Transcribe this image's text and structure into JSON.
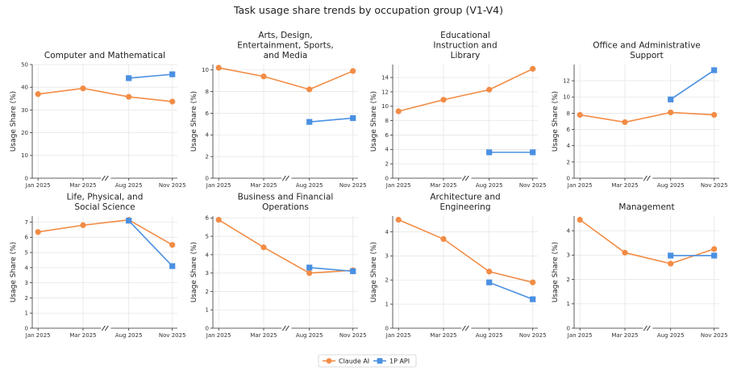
{
  "figure": {
    "title": "Task usage share trends by occupation group (V1-V4)",
    "colors": {
      "claude": "#F28C45",
      "api": "#4A90E2"
    },
    "legend": {
      "items": [
        "Claude AI",
        "1P API"
      ],
      "placement": "bottom-center"
    }
  },
  "chart_data": [
    {
      "type": "line",
      "title": "Computer and Mathematical",
      "ylabel": "Usage Share (%)",
      "x": [
        "Jan 2025",
        "Mar 2025",
        "Aug 2025",
        "Nov 2025"
      ],
      "axis_break": "between Mar 2025 and Aug 2025",
      "ylim": [
        0,
        50
      ],
      "yticks": [
        0,
        10,
        20,
        30,
        40,
        50
      ],
      "grid": true,
      "series": [
        {
          "name": "Claude AI",
          "values": [
            37.0,
            39.5,
            35.8,
            33.7
          ]
        },
        {
          "name": "1P API",
          "values": [
            null,
            null,
            44.0,
            45.7
          ]
        }
      ]
    },
    {
      "type": "line",
      "title": "Arts, Design, Entertainment, Sports, and Media",
      "ylabel": "Usage Share (%)",
      "x": [
        "Jan 2025",
        "Mar 2025",
        "Aug 2025",
        "Nov 2025"
      ],
      "axis_break": "between Mar 2025 and Aug 2025",
      "ylim": [
        0,
        10.5
      ],
      "yticks": [
        0,
        2,
        4,
        6,
        8,
        10
      ],
      "grid": true,
      "series": [
        {
          "name": "Claude AI",
          "values": [
            10.2,
            9.4,
            8.2,
            9.9
          ]
        },
        {
          "name": "1P API",
          "values": [
            null,
            null,
            5.2,
            5.55
          ]
        }
      ]
    },
    {
      "type": "line",
      "title": "Educational Instruction and Library",
      "ylabel": "Usage Share (%)",
      "x": [
        "Jan 2025",
        "Mar 2025",
        "Aug 2025",
        "Nov 2025"
      ],
      "axis_break": "between Mar 2025 and Aug 2025",
      "ylim": [
        0,
        15.8
      ],
      "yticks": [
        0,
        2,
        4,
        6,
        8,
        10,
        12,
        14
      ],
      "grid": true,
      "series": [
        {
          "name": "Claude AI",
          "values": [
            9.3,
            10.9,
            12.3,
            15.2
          ]
        },
        {
          "name": "1P API",
          "values": [
            null,
            null,
            3.6,
            3.6
          ]
        }
      ]
    },
    {
      "type": "line",
      "title": "Office and Administrative Support",
      "ylabel": "Usage Share (%)",
      "x": [
        "Jan 2025",
        "Mar 2025",
        "Aug 2025",
        "Nov 2025"
      ],
      "axis_break": "between Mar 2025 and Aug 2025",
      "ylim": [
        0,
        14
      ],
      "yticks": [
        0,
        2,
        4,
        6,
        8,
        10,
        12
      ],
      "grid": true,
      "series": [
        {
          "name": "Claude AI",
          "values": [
            7.8,
            6.9,
            8.1,
            7.8
          ]
        },
        {
          "name": "1P API",
          "values": [
            null,
            null,
            9.7,
            13.3
          ]
        }
      ]
    },
    {
      "type": "line",
      "title": "Life, Physical, and Social Science",
      "ylabel": "Usage Share (%)",
      "x": [
        "Jan 2025",
        "Mar 2025",
        "Aug 2025",
        "Nov 2025"
      ],
      "axis_break": "between Mar 2025 and Aug 2025",
      "ylim": [
        0,
        7.4
      ],
      "yticks": [
        0,
        1,
        2,
        3,
        4,
        5,
        6,
        7
      ],
      "grid": true,
      "series": [
        {
          "name": "Claude AI",
          "values": [
            6.35,
            6.8,
            7.15,
            5.5
          ]
        },
        {
          "name": "1P API",
          "values": [
            null,
            null,
            7.1,
            4.1
          ]
        }
      ]
    },
    {
      "type": "line",
      "title": "Business and Financial Operations",
      "ylabel": "Usage Share (%)",
      "x": [
        "Jan 2025",
        "Mar 2025",
        "Aug 2025",
        "Nov 2025"
      ],
      "axis_break": "between Mar 2025 and Aug 2025",
      "ylim": [
        0,
        6.1
      ],
      "yticks": [
        0,
        1,
        2,
        3,
        4,
        5,
        6
      ],
      "grid": true,
      "series": [
        {
          "name": "Claude AI",
          "values": [
            5.9,
            4.4,
            3.0,
            3.15
          ]
        },
        {
          "name": "1P API",
          "values": [
            null,
            null,
            3.3,
            3.1
          ]
        }
      ]
    },
    {
      "type": "line",
      "title": "Architecture and Engineering",
      "ylabel": "Usage Share (%)",
      "x": [
        "Jan 2025",
        "Mar 2025",
        "Aug 2025",
        "Nov 2025"
      ],
      "axis_break": "between Mar 2025 and Aug 2025",
      "ylim": [
        0,
        4.65
      ],
      "yticks": [
        0,
        1,
        2,
        3,
        4
      ],
      "grid": true,
      "series": [
        {
          "name": "Claude AI",
          "values": [
            4.5,
            3.7,
            2.35,
            1.9
          ]
        },
        {
          "name": "1P API",
          "values": [
            null,
            null,
            1.9,
            1.2
          ]
        }
      ]
    },
    {
      "type": "line",
      "title": "Management",
      "ylabel": "Usage Share (%)",
      "x": [
        "Jan 2025",
        "Mar 2025",
        "Aug 2025",
        "Nov 2025"
      ],
      "axis_break": "between Mar 2025 and Aug 2025",
      "ylim": [
        0,
        4.6
      ],
      "yticks": [
        0,
        1,
        2,
        3,
        4
      ],
      "grid": true,
      "series": [
        {
          "name": "Claude AI",
          "values": [
            4.45,
            3.1,
            2.65,
            3.25
          ]
        },
        {
          "name": "1P API",
          "values": [
            null,
            null,
            2.98,
            2.98
          ]
        }
      ]
    }
  ]
}
